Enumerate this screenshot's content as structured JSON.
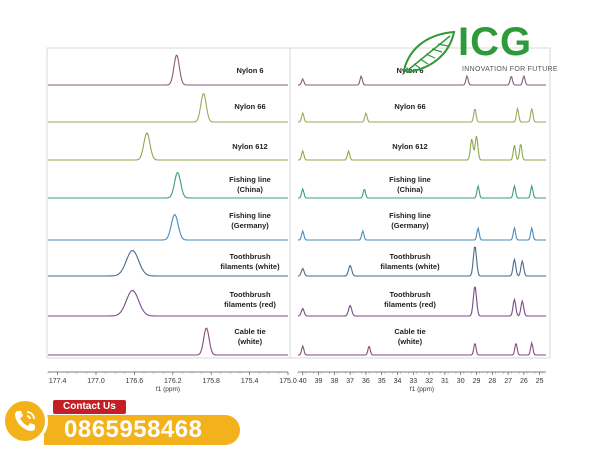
{
  "logo": {
    "brand": "ICG",
    "tagline": "INNOVATION FOR FUTURE",
    "icon": "leaf-icon",
    "color": "#2f9a3a"
  },
  "contact": {
    "label": "Contact Us",
    "phone": "0865958468",
    "icon": "phone-icon",
    "badge_color": "#c51f26",
    "bar_color": "#f3b21b"
  },
  "chart_data": [
    {
      "type": "line",
      "xlabel": "f1 (ppm)",
      "xlim": [
        177.5,
        175.0
      ],
      "xticks": [
        177.4,
        177.0,
        176.6,
        176.2,
        175.8,
        175.4,
        175.0
      ],
      "grid": false,
      "series": [
        {
          "name": "Nylon 6",
          "color": "#8a5a7a",
          "peaks": [
            {
              "x": 176.16,
              "h": 1.0,
              "w": 0.04
            }
          ]
        },
        {
          "name": "Nylon 66",
          "color": "#9aaa5a",
          "peaks": [
            {
              "x": 175.88,
              "h": 0.95,
              "w": 0.04
            }
          ]
        },
        {
          "name": "Nylon 612",
          "color": "#8aaa4a",
          "peaks": [
            {
              "x": 176.47,
              "h": 0.9,
              "w": 0.045
            }
          ]
        },
        {
          "name": "Fishing line (China)",
          "color": "#3aa070",
          "peaks": [
            {
              "x": 176.15,
              "h": 0.85,
              "w": 0.045
            }
          ]
        },
        {
          "name": "Fishing line (Germany)",
          "color": "#4a8ab8",
          "peaks": [
            {
              "x": 176.18,
              "h": 0.85,
              "w": 0.05
            }
          ]
        },
        {
          "name": "Toothbrush filaments (white)",
          "color": "#4a6a8a",
          "peaks": [
            {
              "x": 176.62,
              "h": 0.85,
              "w": 0.09
            }
          ]
        },
        {
          "name": "Toothbrush filaments (red)",
          "color": "#7a4a8a",
          "peaks": [
            {
              "x": 176.62,
              "h": 0.85,
              "w": 0.09
            }
          ]
        },
        {
          "name": "Cable tie (white)",
          "color": "#8a4a7a",
          "peaks": [
            {
              "x": 175.85,
              "h": 0.9,
              "w": 0.04
            }
          ]
        }
      ]
    },
    {
      "type": "line",
      "xlabel": "f1 (ppm)",
      "xlim": [
        40.3,
        24.6
      ],
      "xticks": [
        40,
        39,
        38,
        37,
        36,
        35,
        34,
        33,
        32,
        31,
        30,
        29,
        28,
        27,
        26,
        25
      ],
      "grid": false,
      "series": [
        {
          "name": "Nylon 6",
          "color": "#8a5a7a",
          "peaks": [
            {
              "x": 40.0,
              "h": 0.2,
              "w": 0.1
            },
            {
              "x": 36.3,
              "h": 0.3,
              "w": 0.1
            },
            {
              "x": 29.6,
              "h": 0.3,
              "w": 0.1
            },
            {
              "x": 26.8,
              "h": 0.3,
              "w": 0.1
            },
            {
              "x": 26.0,
              "h": 0.3,
              "w": 0.1
            }
          ]
        },
        {
          "name": "Nylon 66",
          "color": "#9aaa5a",
          "peaks": [
            {
              "x": 40.0,
              "h": 0.3,
              "w": 0.1
            },
            {
              "x": 36.0,
              "h": 0.3,
              "w": 0.1
            },
            {
              "x": 29.1,
              "h": 0.45,
              "w": 0.1
            },
            {
              "x": 26.4,
              "h": 0.45,
              "w": 0.1
            },
            {
              "x": 25.5,
              "h": 0.45,
              "w": 0.1
            }
          ]
        },
        {
          "name": "Nylon 612",
          "color": "#8aaa4a",
          "peaks": [
            {
              "x": 40.0,
              "h": 0.3,
              "w": 0.1
            },
            {
              "x": 37.1,
              "h": 0.3,
              "w": 0.1
            },
            {
              "x": 29.3,
              "h": 0.7,
              "w": 0.12
            },
            {
              "x": 29.0,
              "h": 0.8,
              "w": 0.12
            },
            {
              "x": 26.6,
              "h": 0.5,
              "w": 0.1
            },
            {
              "x": 26.2,
              "h": 0.55,
              "w": 0.1
            }
          ]
        },
        {
          "name": "Fishing line (China)",
          "color": "#3aa070",
          "peaks": [
            {
              "x": 40.0,
              "h": 0.3,
              "w": 0.1
            },
            {
              "x": 36.1,
              "h": 0.3,
              "w": 0.1
            },
            {
              "x": 28.9,
              "h": 0.4,
              "w": 0.1
            },
            {
              "x": 26.6,
              "h": 0.4,
              "w": 0.1
            },
            {
              "x": 25.5,
              "h": 0.4,
              "w": 0.1
            }
          ]
        },
        {
          "name": "Fishing line (Germany)",
          "color": "#4a8ab8",
          "peaks": [
            {
              "x": 40.0,
              "h": 0.3,
              "w": 0.1
            },
            {
              "x": 36.2,
              "h": 0.3,
              "w": 0.1
            },
            {
              "x": 28.9,
              "h": 0.4,
              "w": 0.1
            },
            {
              "x": 26.6,
              "h": 0.4,
              "w": 0.1
            },
            {
              "x": 25.5,
              "h": 0.4,
              "w": 0.1
            }
          ]
        },
        {
          "name": "Toothbrush filaments (white)",
          "color": "#4a6a8a",
          "peaks": [
            {
              "x": 40.0,
              "h": 0.25,
              "w": 0.12
            },
            {
              "x": 37.0,
              "h": 0.35,
              "w": 0.14
            },
            {
              "x": 29.1,
              "h": 1.0,
              "w": 0.14
            },
            {
              "x": 26.6,
              "h": 0.55,
              "w": 0.12
            },
            {
              "x": 26.1,
              "h": 0.5,
              "w": 0.12
            }
          ]
        },
        {
          "name": "Toothbrush filaments (red)",
          "color": "#7a4a8a",
          "peaks": [
            {
              "x": 40.0,
              "h": 0.25,
              "w": 0.12
            },
            {
              "x": 37.0,
              "h": 0.35,
              "w": 0.14
            },
            {
              "x": 29.1,
              "h": 1.0,
              "w": 0.14
            },
            {
              "x": 26.6,
              "h": 0.55,
              "w": 0.12
            },
            {
              "x": 26.1,
              "h": 0.5,
              "w": 0.12
            }
          ]
        },
        {
          "name": "Cable tie (white)",
          "color": "#8a4a7a",
          "peaks": [
            {
              "x": 40.0,
              "h": 0.3,
              "w": 0.1
            },
            {
              "x": 35.8,
              "h": 0.3,
              "w": 0.1
            },
            {
              "x": 29.1,
              "h": 0.4,
              "w": 0.1
            },
            {
              "x": 26.5,
              "h": 0.4,
              "w": 0.1
            },
            {
              "x": 25.5,
              "h": 0.4,
              "w": 0.1
            }
          ]
        }
      ]
    }
  ],
  "labels": [
    [
      "Nylon 6"
    ],
    [
      "Nylon 66"
    ],
    [
      "Nylon 612"
    ],
    [
      "Fishing line",
      "(China)"
    ],
    [
      "Fishing line",
      "(Germany)"
    ],
    [
      "Toothbrush",
      "filaments (white)"
    ],
    [
      "Toothbrush",
      "filaments (red)"
    ],
    [
      "Cable tie",
      "(white)"
    ]
  ]
}
